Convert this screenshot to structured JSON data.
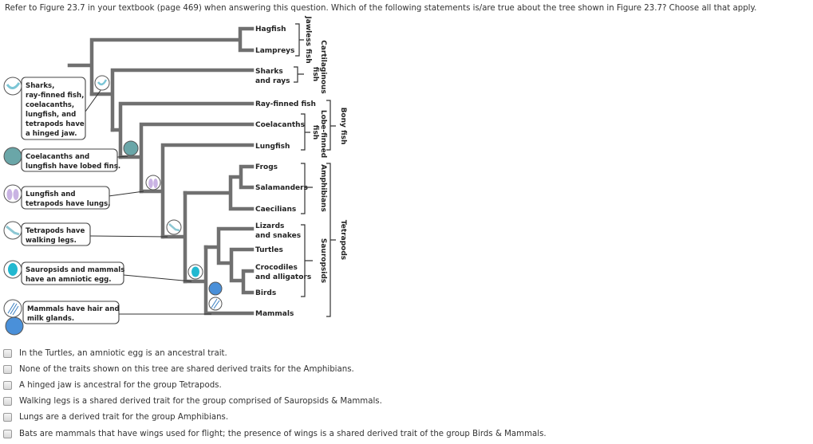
{
  "question": "Refer to Figure 23.7 in your textbook (page 469) when answering this question. Which of the following statements is/are true about the tree shown in Figure 23.7? Choose all that apply.",
  "tree": {
    "taxa": [
      "Hagfish",
      "Lampreys",
      "Sharks",
      "and rays",
      "Ray-finned fish",
      "Coelacanths",
      "Lungfish",
      "Frogs",
      "Salamanders",
      "Caecilians",
      "Lizards",
      "and snakes",
      "Turtles",
      "Crocodiles",
      "and alligators",
      "Birds",
      "Mammals"
    ],
    "groups": {
      "jawless": "Jawless fish",
      "cartilaginous_1": "Cartilaginous",
      "cartilaginous_2": "fish",
      "bony": "Bony fish",
      "lobe_1": "Lobe-finned",
      "lobe_2": "fish",
      "amphibians": "Amphibians",
      "sauropsids": "Sauropsids",
      "tetrapods": "Tetrapods"
    },
    "traits": {
      "jaw": [
        "Sharks,",
        "ray-finned fish,",
        "coelacanths,",
        "lungfish, and",
        "tetrapods have",
        "a hinged jaw."
      ],
      "lobed": [
        "Coelacanths and",
        "lungfish have lobed fins."
      ],
      "lungs": [
        "Lungfish and",
        "tetrapods have lungs."
      ],
      "legs": [
        "Tetrapods have",
        "walking legs."
      ],
      "egg": [
        "Sauropsids and mammals",
        "have an amniotic egg."
      ],
      "hair": [
        "Mammals have hair and",
        "milk glands."
      ]
    },
    "colors": {
      "branch": "#707070",
      "jaw": "#bfe6ee",
      "lobed": "#5f9ea0",
      "lungs": "#c9b3e3",
      "legs": "#a9d8e0",
      "egg": "#22b8d0",
      "hair": "#3a7fc1",
      "milk": "#4a90d9"
    }
  },
  "options": [
    {
      "label": "In the Turtles, an amniotic egg is an ancestral trait.",
      "checked": false
    },
    {
      "label": "None of the traits shown on this tree are shared derived traits for the Amphibians.",
      "checked": false
    },
    {
      "label": "A hinged jaw is ancestral for the group Tetrapods.",
      "checked": false
    },
    {
      "label": "Walking legs is a shared derived trait for the group comprised of Sauropsids & Mammals.",
      "checked": false
    },
    {
      "label": "Lungs are a derived trait for the group Amphibians.",
      "checked": false
    },
    {
      "label": "Bats are mammals that have wings used for flight; the presence of wings is a shared derived trait of the group Birds & Mammals.",
      "checked": false
    }
  ]
}
